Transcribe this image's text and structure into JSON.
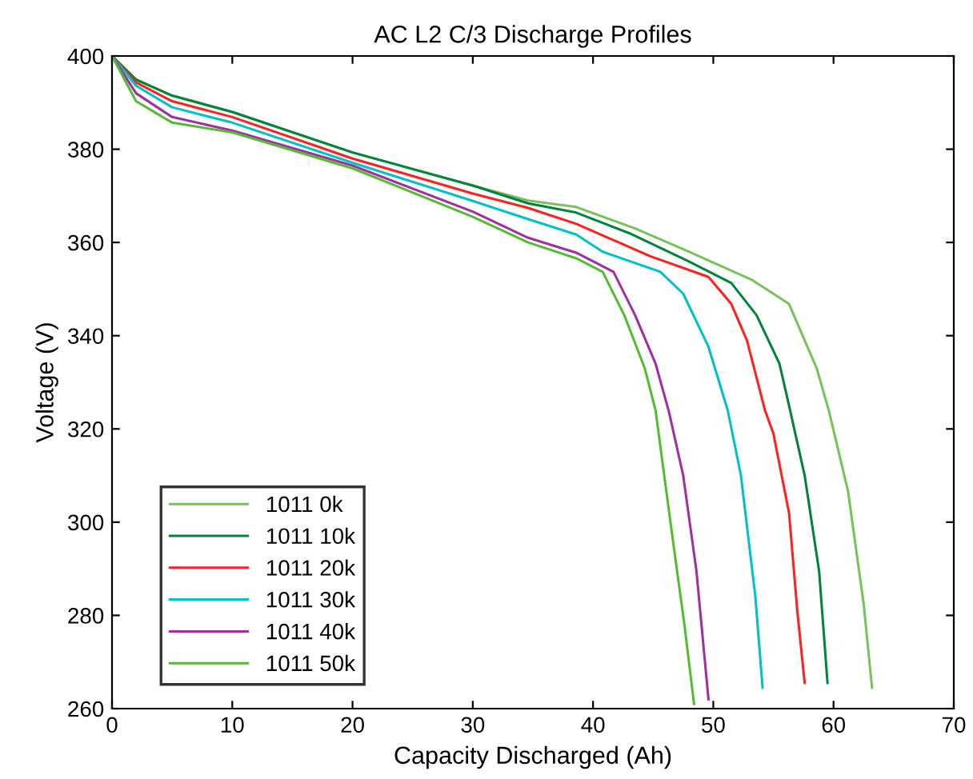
{
  "chart_data": {
    "type": "line",
    "title": "AC L2 C/3 Discharge Profiles",
    "xlabel": "Capacity Discharged (Ah)",
    "ylabel": "Voltage (V)",
    "xlim": [
      0,
      70
    ],
    "ylim": [
      260,
      400
    ],
    "xticks": [
      0,
      10,
      20,
      30,
      40,
      50,
      60,
      70
    ],
    "yticks": [
      260,
      280,
      300,
      320,
      340,
      360,
      380,
      400
    ],
    "grid": false,
    "legend": "bottom left",
    "line_style": "solid",
    "marker": "none",
    "series": [
      {
        "name": "1011 0k",
        "color": "#77c25b",
        "x": [
          0,
          2,
          5,
          10,
          20,
          30,
          34.6,
          38.6,
          43.5,
          48,
          53.2,
          56.3,
          58.6,
          59.6,
          61.2,
          62.5,
          63.2
        ],
        "values": [
          400,
          395,
          391.5,
          388,
          379.3,
          372.2,
          369,
          367.6,
          363,
          358,
          352,
          346.8,
          333,
          324,
          306.7,
          282.6,
          264.5
        ]
      },
      {
        "name": "1011 10k",
        "color": "#00843d",
        "x": [
          0,
          2,
          5,
          10,
          20,
          30,
          34.6,
          38.6,
          43,
          47.9,
          51.5,
          53.6,
          55.5,
          56.3,
          57.6,
          58.8,
          59.5
        ],
        "values": [
          400,
          394.9,
          391.5,
          388,
          379.3,
          372.2,
          368.4,
          366.4,
          362,
          356,
          351.3,
          344.4,
          334,
          325,
          310,
          289.5,
          265.5
        ]
      },
      {
        "name": "1011 20k",
        "color": "#ff2020",
        "x": [
          0,
          2,
          5,
          10,
          20,
          30,
          34.6,
          38.6,
          44.8,
          49.6,
          51.5,
          52.8,
          54.3,
          55,
          56.3,
          57,
          57.6
        ],
        "values": [
          400,
          394.3,
          390.3,
          386.9,
          378,
          370.5,
          367.4,
          364,
          357,
          352.6,
          346.8,
          339,
          324,
          319,
          302,
          280.6,
          265.5
        ]
      },
      {
        "name": "1011 30k",
        "color": "#00c0c8",
        "x": [
          0,
          2,
          5,
          10,
          20,
          30,
          34.6,
          38.6,
          40.8,
          45.6,
          47.5,
          49.6,
          51.2,
          52.3,
          53.5,
          54.1
        ],
        "values": [
          400,
          393.6,
          389,
          385.7,
          377.1,
          368.9,
          365,
          361.7,
          358,
          353.7,
          349,
          337.6,
          324,
          310,
          284,
          264.5
        ]
      },
      {
        "name": "1011 40k",
        "color": "#a030a0",
        "x": [
          0,
          2,
          5,
          10,
          20,
          30,
          34.6,
          38.6,
          41.7,
          43.5,
          45.2,
          46.3,
          47.5,
          48.6,
          49.6
        ],
        "values": [
          400,
          392,
          386.9,
          384,
          376.5,
          366.6,
          361,
          357.8,
          353.7,
          344.4,
          334,
          323.8,
          310,
          289.5,
          262
        ]
      },
      {
        "name": "1011 50k",
        "color": "#55bb33",
        "x": [
          0,
          2,
          5,
          10,
          20,
          30,
          34.6,
          38.6,
          40.8,
          42.6,
          44.3,
          45.2,
          46.5,
          47.6,
          48.4
        ],
        "values": [
          400,
          390.3,
          385.7,
          383.6,
          375.9,
          365.5,
          360,
          356.6,
          353.7,
          344.4,
          333,
          324,
          298.8,
          278,
          261
        ]
      }
    ]
  }
}
